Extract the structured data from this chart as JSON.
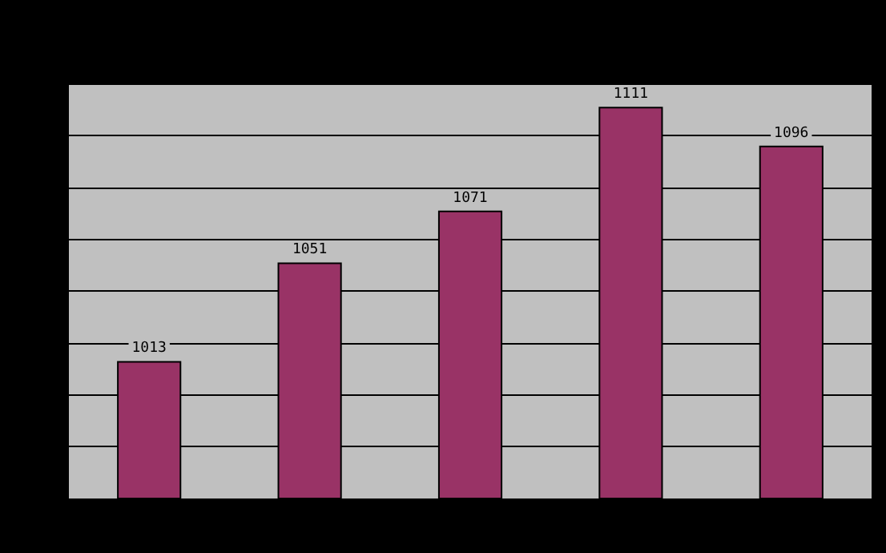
{
  "chart_data": {
    "type": "bar",
    "categories": [
      null,
      null,
      null,
      null,
      null
    ],
    "values": [
      1013,
      1051,
      1071,
      1111,
      1096
    ],
    "color": "#993366",
    "ylim": [
      960,
      1120
    ],
    "yticks": [
      {
        "value": 960,
        "label": null
      },
      {
        "value": 980,
        "label": null
      },
      {
        "value": 1000,
        "label": null
      },
      {
        "value": 1020,
        "label": null
      },
      {
        "value": 1040,
        "label": null
      },
      {
        "value": 1060,
        "label": null
      },
      {
        "value": 1080,
        "label": null
      },
      {
        "value": 1100,
        "label": null
      },
      {
        "value": 1120,
        "label": null
      }
    ],
    "grid": "y",
    "data_labels": true
  }
}
